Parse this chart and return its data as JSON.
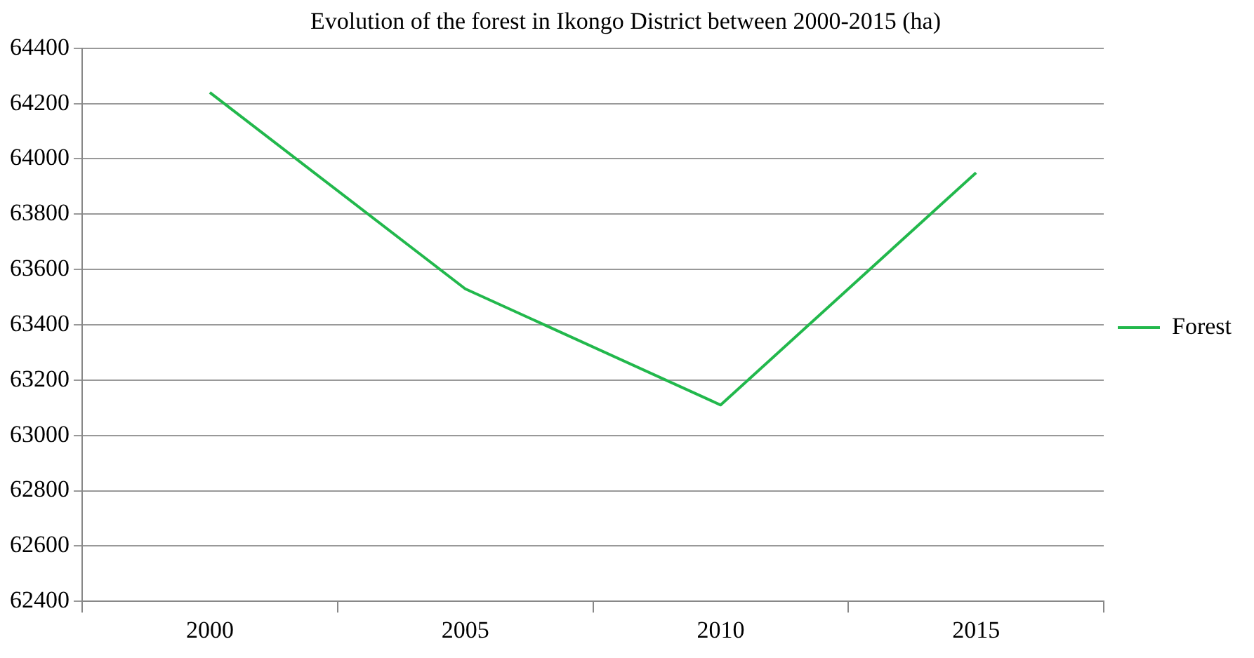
{
  "chart_data": {
    "type": "line",
    "title": "Evolution of the forest in Ikongo District between 2000-2015 (ha)",
    "categories": [
      "2000",
      "2005",
      "2010",
      "2015"
    ],
    "series": [
      {
        "name": "Forest",
        "color": "#22b84c",
        "values": [
          64240,
          63530,
          63110,
          63950
        ]
      }
    ],
    "ylim": [
      62400,
      64400
    ],
    "yticks": [
      62400,
      62600,
      62800,
      63000,
      63200,
      63400,
      63600,
      63800,
      64000,
      64200,
      64400
    ],
    "grid": "y",
    "legend": "right",
    "marker": "none",
    "line_style": "solid"
  }
}
